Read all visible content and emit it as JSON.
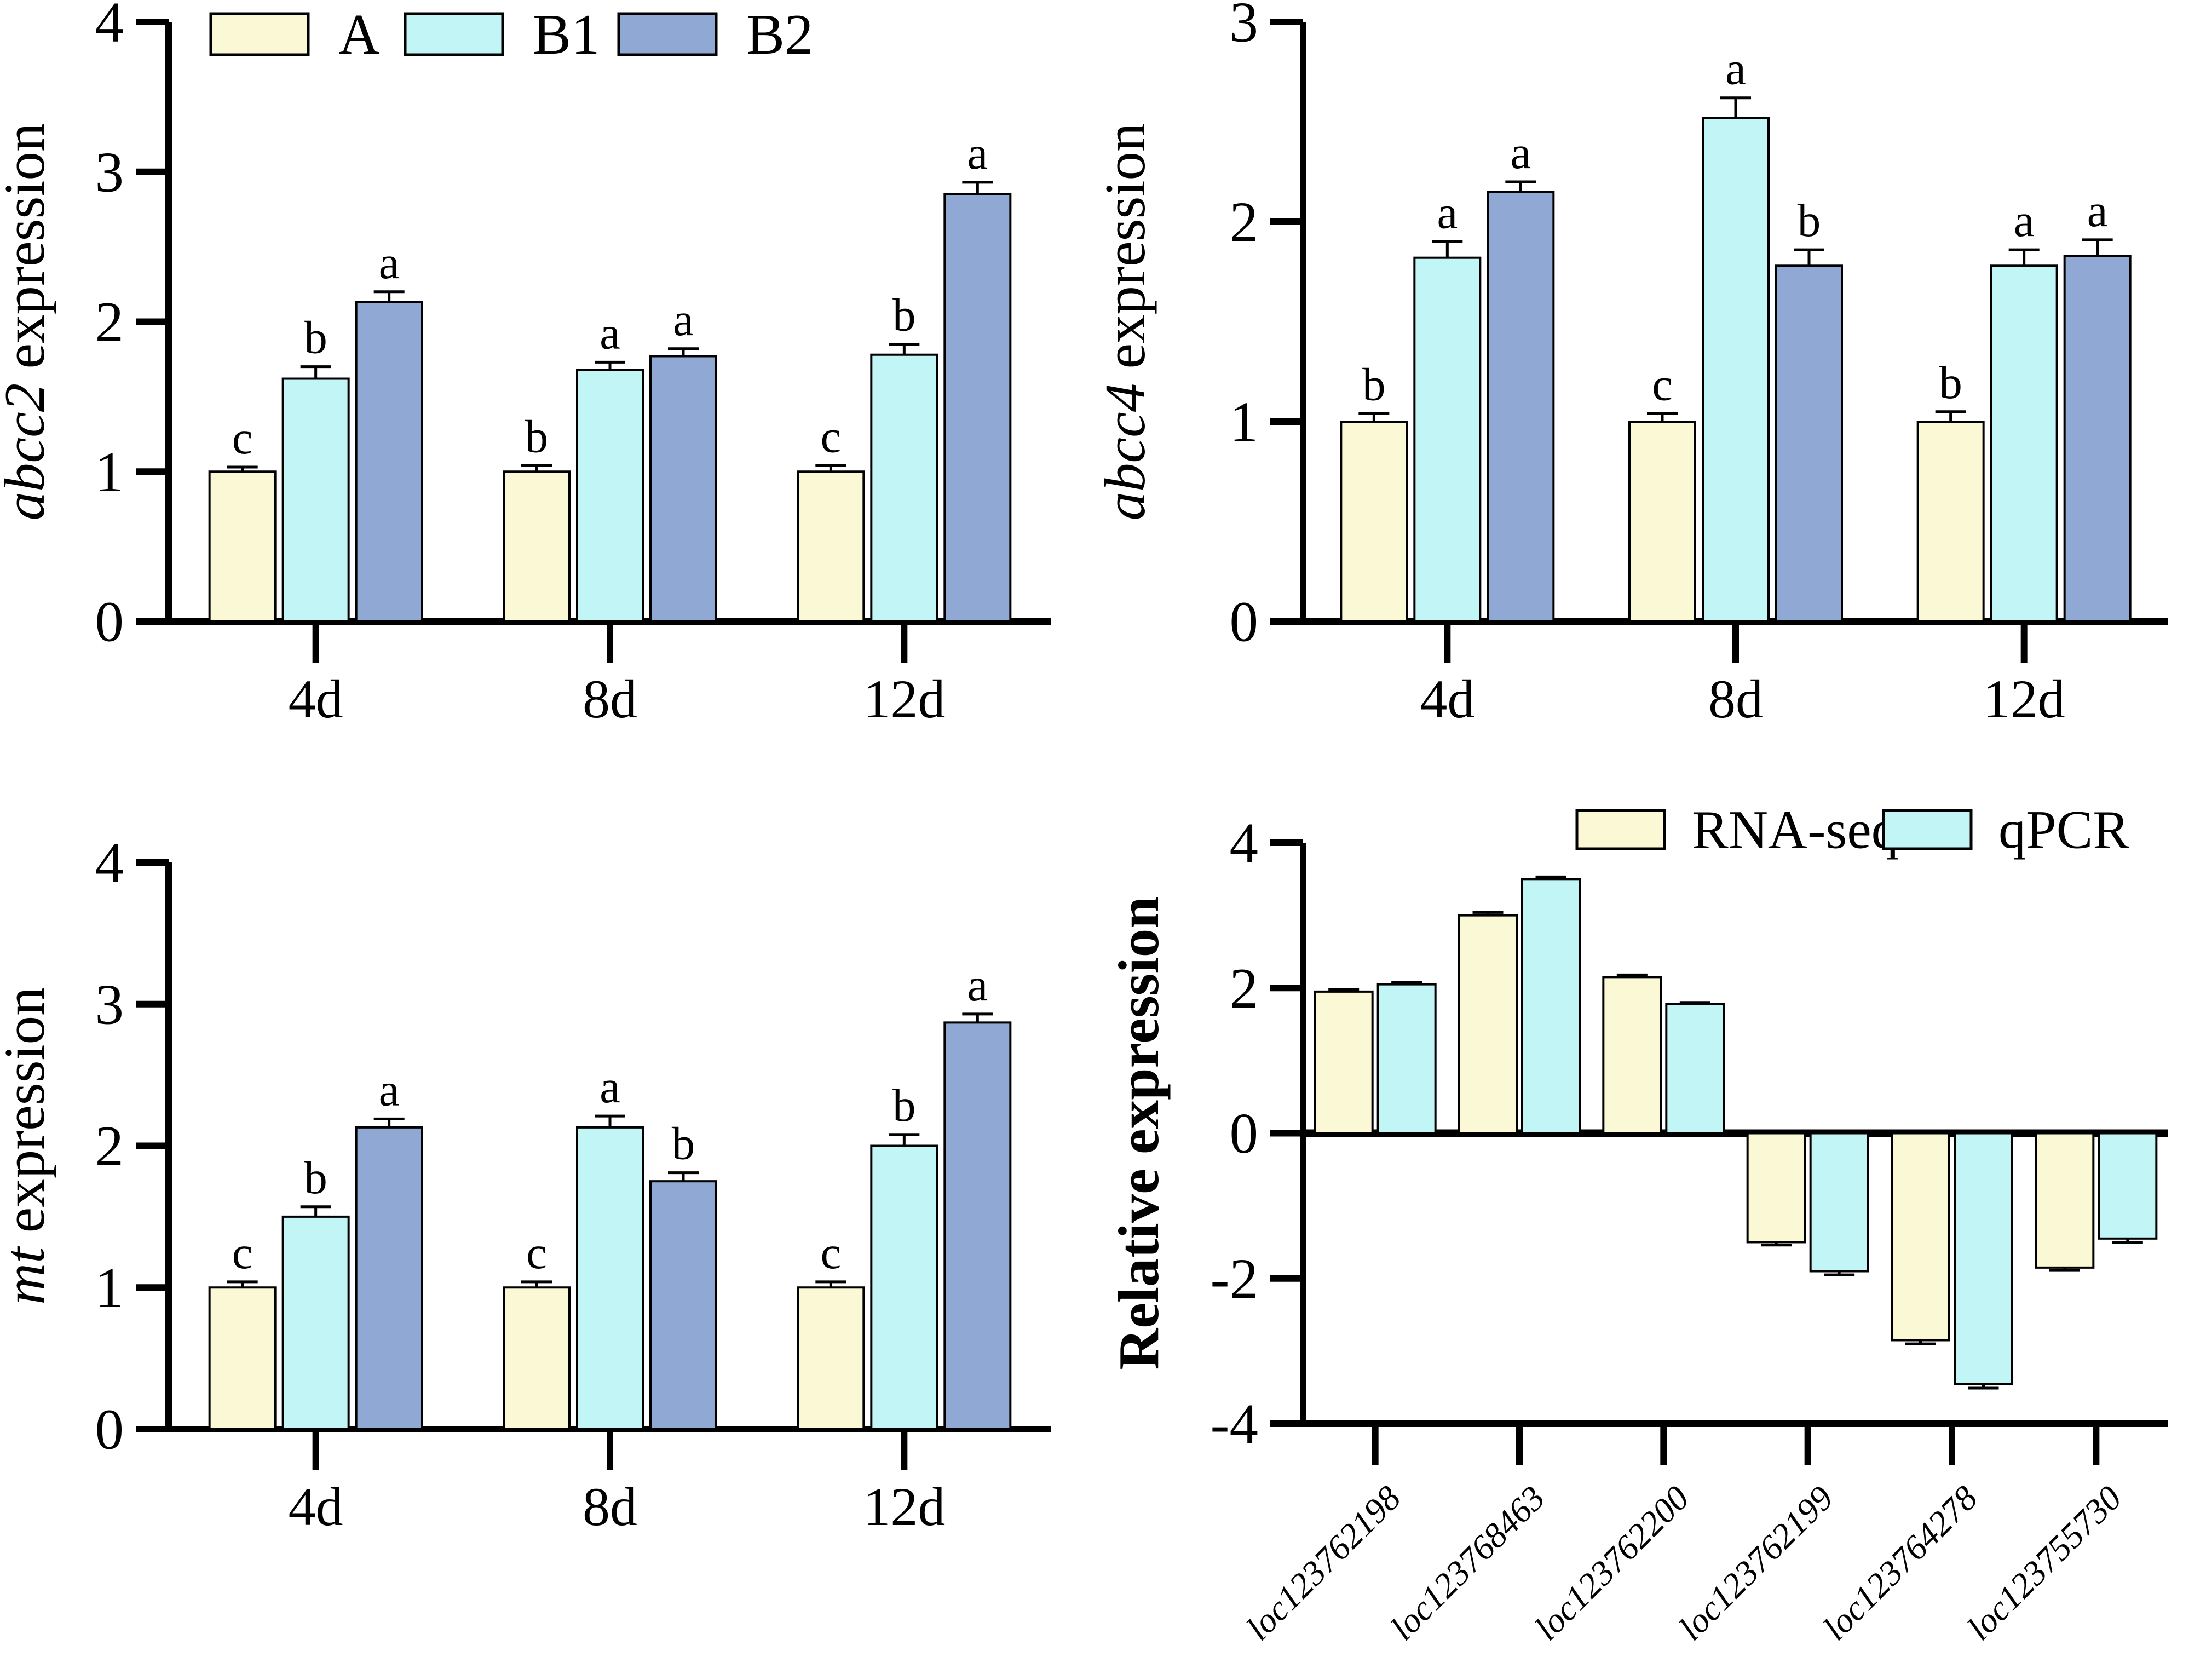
{
  "figure": {
    "background": "#ffffff",
    "description": "Four-panel gene expression bar chart figure"
  },
  "colors": {
    "A": "#FBF9D5",
    "B1": "#C2F5F6",
    "B2": "#8FA9D4",
    "RNA-seq": "#FBF9D5",
    "qPCR": "#C2F5F6",
    "bar_border": "#000000",
    "axis": "#000000"
  },
  "chart_data": [
    {
      "type": "bar",
      "id": "abcc2",
      "ylabel_parts": [
        {
          "text": "abcc2",
          "italic": true,
          "bold": false
        },
        {
          "text": " expression",
          "italic": false,
          "bold": false
        }
      ],
      "categories": [
        "4d",
        "8d",
        "12d"
      ],
      "series": [
        {
          "name": "A",
          "values": [
            1.0,
            1.0,
            1.0
          ],
          "errors": [
            0.03,
            0.04,
            0.04
          ],
          "letters": [
            "c",
            "b",
            "c"
          ]
        },
        {
          "name": "B1",
          "values": [
            1.62,
            1.68,
            1.78
          ],
          "errors": [
            0.08,
            0.05,
            0.07
          ],
          "letters": [
            "b",
            "a",
            "b"
          ]
        },
        {
          "name": "B2",
          "values": [
            2.13,
            1.77,
            2.85
          ],
          "errors": [
            0.07,
            0.05,
            0.08
          ],
          "letters": [
            "a",
            "a",
            "a"
          ]
        }
      ],
      "ylim": [
        0,
        4
      ],
      "yticks": [
        0,
        1,
        2,
        3,
        4
      ],
      "grid": false,
      "legend": {
        "show": true,
        "entries": [
          "A",
          "B1",
          "B2"
        ],
        "position": "top-inside-row"
      }
    },
    {
      "type": "bar",
      "id": "abcc4",
      "ylabel_parts": [
        {
          "text": "abcc4",
          "italic": true,
          "bold": false
        },
        {
          "text": " expression",
          "italic": false,
          "bold": false
        }
      ],
      "categories": [
        "4d",
        "8d",
        "12d"
      ],
      "series": [
        {
          "name": "A",
          "values": [
            1.0,
            1.0,
            1.0
          ],
          "errors": [
            0.04,
            0.04,
            0.05
          ],
          "letters": [
            "b",
            "c",
            "b"
          ]
        },
        {
          "name": "B1",
          "values": [
            1.82,
            2.52,
            1.78
          ],
          "errors": [
            0.08,
            0.1,
            0.08
          ],
          "letters": [
            "a",
            "a",
            "a"
          ]
        },
        {
          "name": "B2",
          "values": [
            2.15,
            1.78,
            1.83
          ],
          "errors": [
            0.05,
            0.08,
            0.08
          ],
          "letters": [
            "a",
            "b",
            "a"
          ]
        }
      ],
      "ylim": [
        0,
        3
      ],
      "yticks": [
        0,
        1,
        2,
        3
      ],
      "grid": false,
      "legend": {
        "show": false,
        "entries": [],
        "position": "none"
      }
    },
    {
      "type": "bar",
      "id": "mt",
      "ylabel_parts": [
        {
          "text": "mt",
          "italic": true,
          "bold": false
        },
        {
          "text": " expression",
          "italic": false,
          "bold": false
        }
      ],
      "categories": [
        "4d",
        "8d",
        "12d"
      ],
      "series": [
        {
          "name": "A",
          "values": [
            1.0,
            1.0,
            1.0
          ],
          "errors": [
            0.04,
            0.04,
            0.04
          ],
          "letters": [
            "c",
            "c",
            "c"
          ]
        },
        {
          "name": "B1",
          "values": [
            1.5,
            2.13,
            2.0
          ],
          "errors": [
            0.07,
            0.08,
            0.08
          ],
          "letters": [
            "b",
            "a",
            "b"
          ]
        },
        {
          "name": "B2",
          "values": [
            2.13,
            1.75,
            2.87
          ],
          "errors": [
            0.06,
            0.06,
            0.06
          ],
          "letters": [
            "a",
            "b",
            "a"
          ]
        }
      ],
      "ylim": [
        0,
        4
      ],
      "yticks": [
        0,
        1,
        2,
        3,
        4
      ],
      "grid": false,
      "legend": {
        "show": false,
        "entries": [],
        "position": "none"
      }
    },
    {
      "type": "bar",
      "id": "validation",
      "ylabel_parts": [
        {
          "text": "Relative expression",
          "italic": false,
          "bold": true
        }
      ],
      "categories": [
        "loc123762198",
        "loc123768463",
        "loc123762200",
        "loc123762199",
        "loc123764278",
        "loc123755730"
      ],
      "categories_italic": true,
      "categories_rotated": true,
      "series": [
        {
          "name": "RNA-seq",
          "values": [
            1.95,
            3.0,
            2.15,
            -1.5,
            -2.85,
            -1.85
          ],
          "errors": [
            0.03,
            0.04,
            0.03,
            0.04,
            0.05,
            0.04
          ]
        },
        {
          "name": "qPCR",
          "values": [
            2.05,
            3.5,
            1.78,
            -1.9,
            -3.45,
            -1.45
          ],
          "errors": [
            0.03,
            0.03,
            0.02,
            0.05,
            0.06,
            0.05
          ]
        }
      ],
      "ylim": [
        -4,
        4
      ],
      "yticks": [
        -4,
        -2,
        0,
        2,
        4
      ],
      "grid": false,
      "legend": {
        "show": true,
        "entries": [
          "RNA-seq",
          "qPCR"
        ],
        "position": "top-right-inside"
      }
    }
  ]
}
